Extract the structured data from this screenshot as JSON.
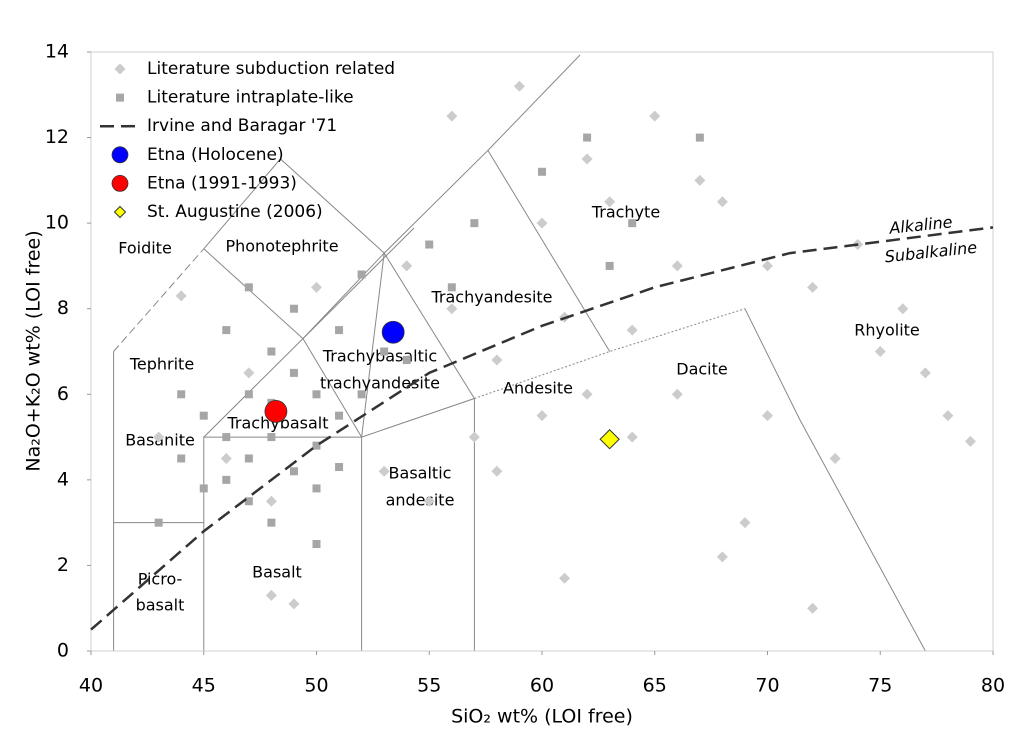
{
  "chart_data": {
    "type": "scatter",
    "x_label": "SiO₂ wt% (LOI free)",
    "y_label": "Na₂O+K₂O wt% (LOI free)",
    "xlim": [
      40,
      80
    ],
    "xticks": [
      40,
      45,
      50,
      55,
      60,
      65,
      70,
      75,
      80
    ],
    "ylim": [
      0,
      14
    ],
    "yticks": [
      0,
      2,
      4,
      6,
      8,
      10,
      12,
      14
    ],
    "legend": "upper left",
    "field_labels": [
      "Foidite",
      "Phonotephrite",
      "Tephrite",
      "Basanite",
      "Picro-",
      "basalt",
      "Basalt",
      "Trachybasalt",
      "Trachybasaltic",
      "trachyandesite",
      "Trachyandesite",
      "Basaltic",
      "andesite",
      "Andesite",
      "Trachyte",
      "Dacite",
      "Rhyolite"
    ],
    "annotations": [
      "Alkaline",
      "Subalkaline"
    ],
    "series": [
      {
        "name": "Literature subduction related",
        "marker": "diamond",
        "color": "#cccccc",
        "x": [
          55,
          58,
          60,
          62,
          64,
          66,
          68,
          72,
          75,
          78,
          79,
          72,
          68,
          61,
          48,
          49,
          56,
          59,
          62,
          65,
          60,
          63,
          67,
          70,
          74,
          76,
          77,
          70,
          66,
          64,
          58,
          56,
          54,
          50,
          47,
          46,
          48,
          53,
          57,
          61,
          69,
          73,
          44,
          43
        ],
        "values": [
          3.5,
          4.2,
          5.5,
          6,
          7.5,
          9,
          10.5,
          8.5,
          7,
          5.5,
          4.9,
          1,
          2.2,
          1.7,
          1.3,
          1.1,
          12.5,
          13.2,
          11.5,
          12.5,
          10,
          10.5,
          11,
          9,
          9.5,
          8,
          6.5,
          5.5,
          6,
          5,
          6.8,
          8,
          9,
          8.5,
          6.5,
          4.5,
          3.5,
          4.2,
          5,
          7.8,
          3,
          4.5,
          8.3,
          5
        ]
      },
      {
        "name": "Literature intraplate-like",
        "marker": "square",
        "color": "#a6a6a6",
        "x": [
          46,
          47,
          48,
          49,
          50,
          51,
          47,
          48,
          49,
          46,
          45,
          44,
          47,
          48,
          50,
          51,
          52,
          53,
          49,
          47,
          45,
          46,
          50,
          48,
          51,
          52,
          55,
          57,
          60,
          62,
          64,
          67,
          63,
          56,
          54,
          44,
          43,
          50
        ],
        "values": [
          4,
          4.5,
          5,
          4.2,
          4.8,
          5.5,
          6,
          7,
          6.5,
          7.5,
          5.5,
          6,
          3.5,
          3,
          3.8,
          4.3,
          6,
          7,
          8,
          8.5,
          3.8,
          5,
          6,
          5.8,
          7.5,
          8.8,
          9.5,
          10,
          11.2,
          12,
          10,
          12,
          9,
          8.5,
          6.8,
          4.5,
          3,
          2.5
        ]
      },
      {
        "name": "Irvine and Baragar '71",
        "marker": "dashed-line",
        "color": "#333333",
        "x": [
          40,
          45,
          50,
          55,
          60,
          65,
          71,
          80
        ],
        "values": [
          0.5,
          2.8,
          4.8,
          6.5,
          7.6,
          8.5,
          9.3,
          9.9
        ]
      },
      {
        "name": "Etna (Holocene)",
        "marker": "circle",
        "color": "#0000ff",
        "x": [
          53.4
        ],
        "values": [
          7.45
        ]
      },
      {
        "name": "Etna (1991-1993)",
        "marker": "circle",
        "color": "#ff0000",
        "x": [
          48.2
        ],
        "values": [
          5.6
        ]
      },
      {
        "name": "St. Augustine (2006)",
        "marker": "diamond-large",
        "color": "#ffff00",
        "x": [
          63
        ],
        "values": [
          4.95
        ]
      }
    ]
  }
}
